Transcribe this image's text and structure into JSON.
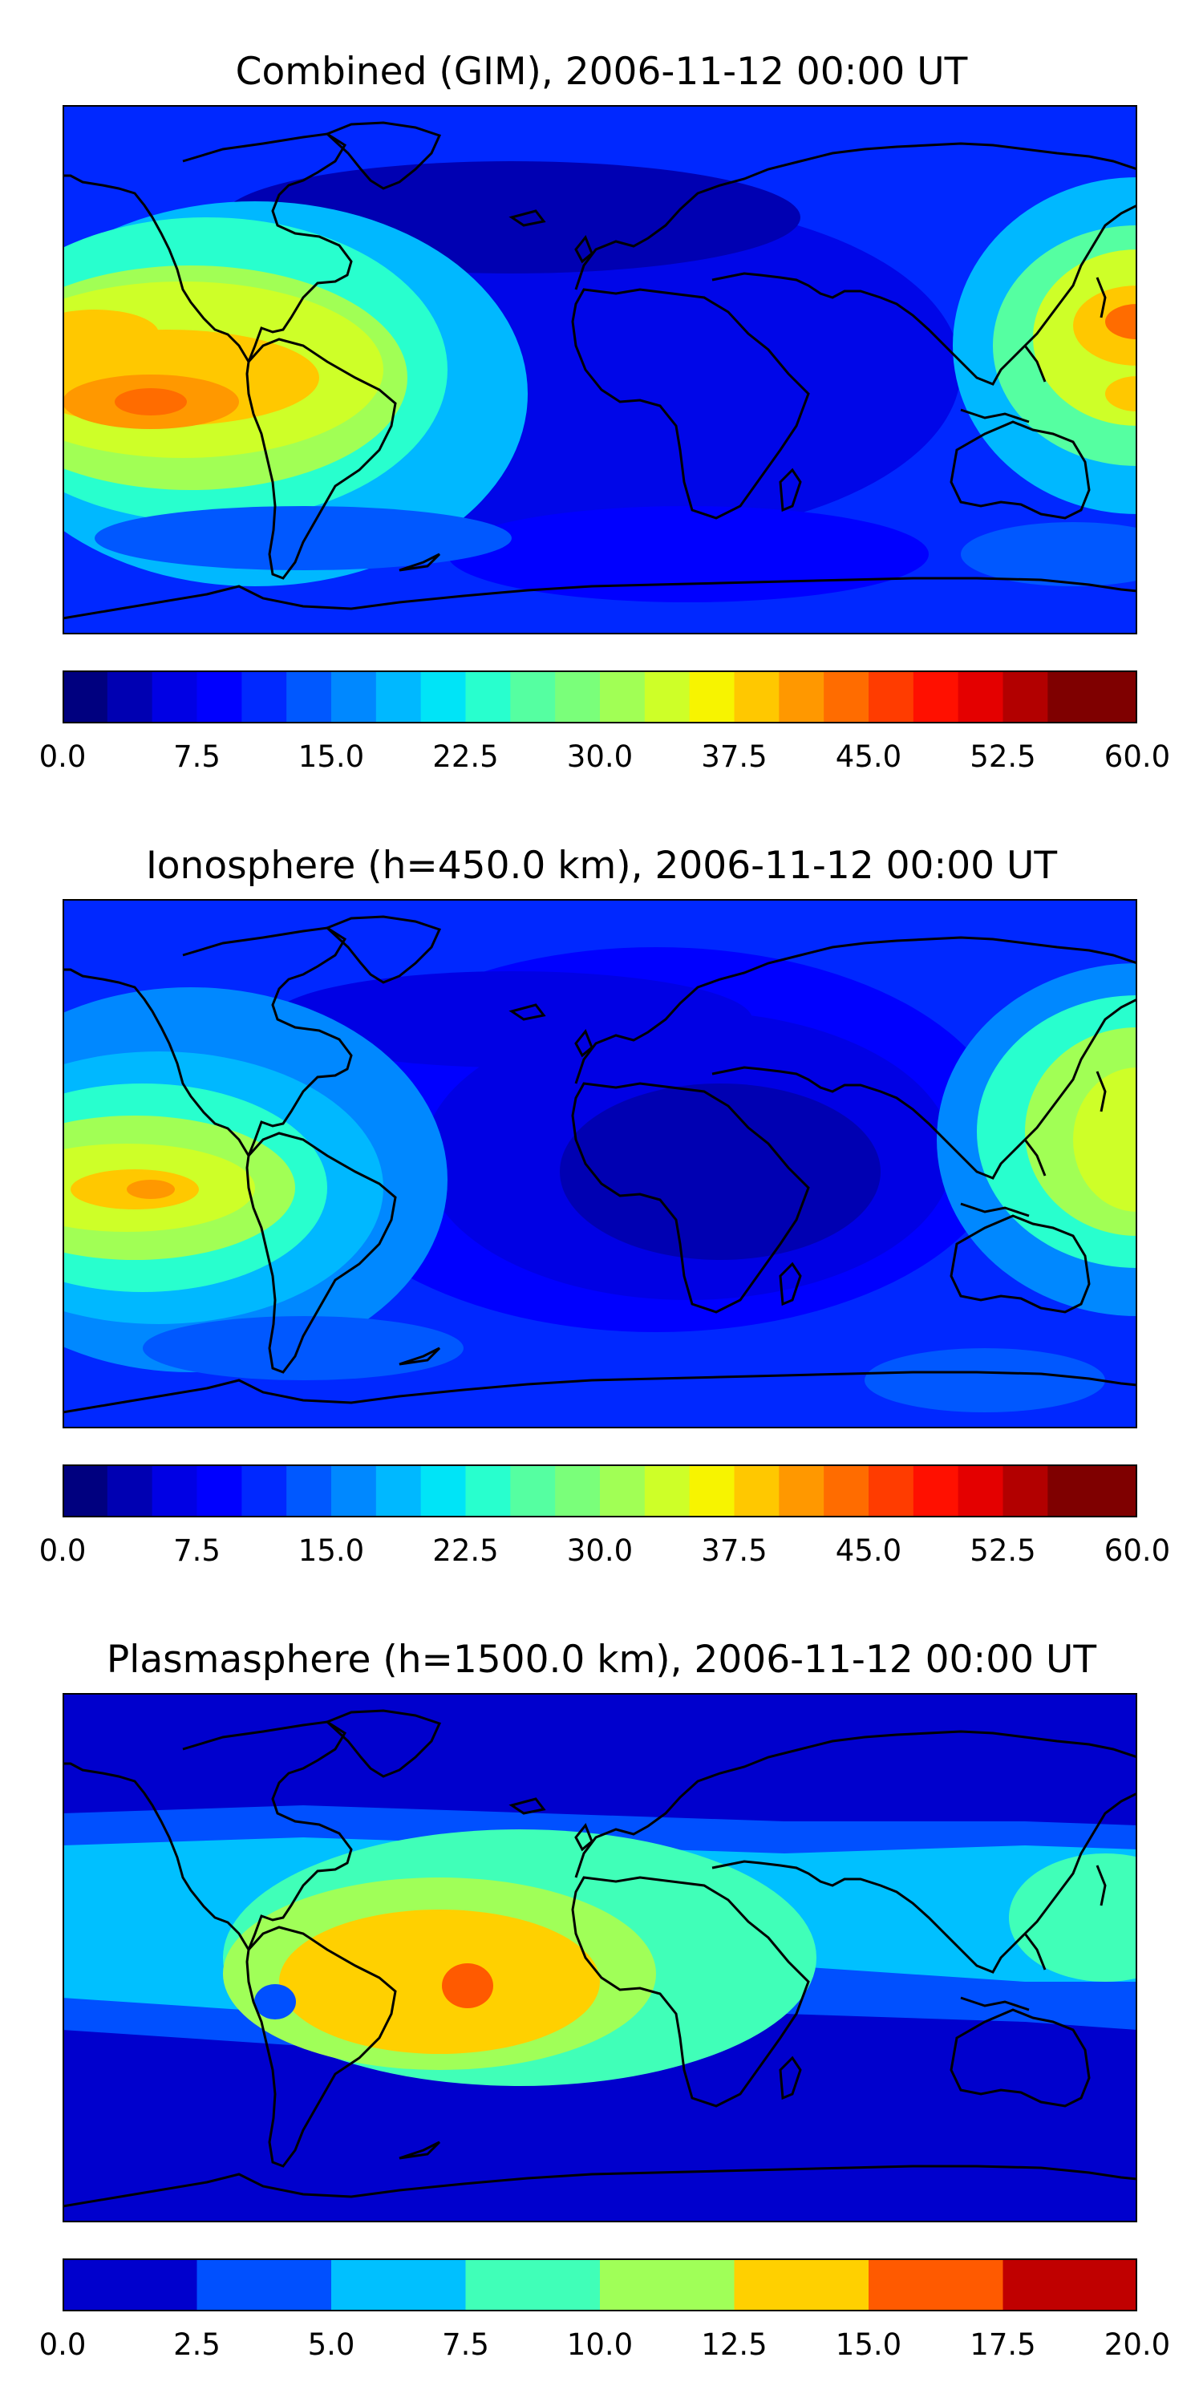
{
  "figure": {
    "panels": [
      {
        "id": "combined",
        "title": "Combined (GIM), 2006-11-12 00:00 UT",
        "colorbar": {
          "min": 0.0,
          "max": 60.0,
          "levels": 24,
          "ticks": [
            "0.0",
            "7.5",
            "15.0",
            "22.5",
            "30.0",
            "37.5",
            "45.0",
            "52.5",
            "60.0"
          ],
          "colors": [
            "#00007f",
            "#0000b2",
            "#0000e4",
            "#0000ff",
            "#0028ff",
            "#0058ff",
            "#0088ff",
            "#00b8ff",
            "#00e4f7",
            "#28ffce",
            "#55ffa1",
            "#7aff7a",
            "#a1ff55",
            "#ceff28",
            "#f7f400",
            "#ffc800",
            "#ff9800",
            "#ff6c00",
            "#ff3c00",
            "#ff1000",
            "#e40000",
            "#b20000",
            "#7f0000",
            "#7f0000"
          ]
        }
      },
      {
        "id": "ionosphere",
        "title": "Ionosphere  (h=450.0 km), 2006-11-12 00:00 UT",
        "colorbar": {
          "min": 0.0,
          "max": 60.0,
          "levels": 24,
          "ticks": [
            "0.0",
            "7.5",
            "15.0",
            "22.5",
            "30.0",
            "37.5",
            "45.0",
            "52.5",
            "60.0"
          ],
          "colors": [
            "#00007f",
            "#0000b2",
            "#0000e4",
            "#0000ff",
            "#0028ff",
            "#0058ff",
            "#0088ff",
            "#00b8ff",
            "#00e4f7",
            "#28ffce",
            "#55ffa1",
            "#7aff7a",
            "#a1ff55",
            "#ceff28",
            "#f7f400",
            "#ffc800",
            "#ff9800",
            "#ff6c00",
            "#ff3c00",
            "#ff1000",
            "#e40000",
            "#b20000",
            "#7f0000",
            "#7f0000"
          ]
        }
      },
      {
        "id": "plasmasphere",
        "title": "Plasmasphere (h=1500.0 km), 2006-11-12 00:00 UT",
        "colorbar": {
          "min": 0.0,
          "max": 20.0,
          "levels": 8,
          "ticks": [
            "0.0",
            "2.5",
            "5.0",
            "7.5",
            "10.0",
            "12.5",
            "15.0",
            "17.5",
            "20.0"
          ],
          "colors": [
            "#0000cd",
            "#0050ff",
            "#00c0ff",
            "#40ffb8",
            "#a0ff58",
            "#ffd000",
            "#ff5a00",
            "#c00000"
          ]
        }
      }
    ]
  }
}
